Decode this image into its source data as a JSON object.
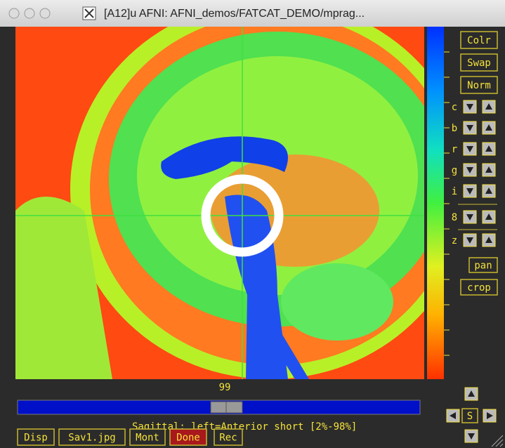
{
  "window": {
    "title": "[A12]u AFNI: AFNI_demos/FATCAT_DEMO/mprag..."
  },
  "side_buttons": [
    "Colr",
    "Swap",
    "Norm"
  ],
  "controls": [
    "c",
    "b",
    "r",
    "g",
    "i",
    "8",
    "z"
  ],
  "small_buttons": [
    "pan",
    "crop"
  ],
  "slider": {
    "value": 99
  },
  "status": "Sagittal: left=Anterior short [2%-98%]",
  "bottom_buttons": [
    "Disp",
    "Sav1.jpg",
    "Mont",
    "Done",
    "Rec"
  ],
  "nav": {
    "center": "S"
  }
}
